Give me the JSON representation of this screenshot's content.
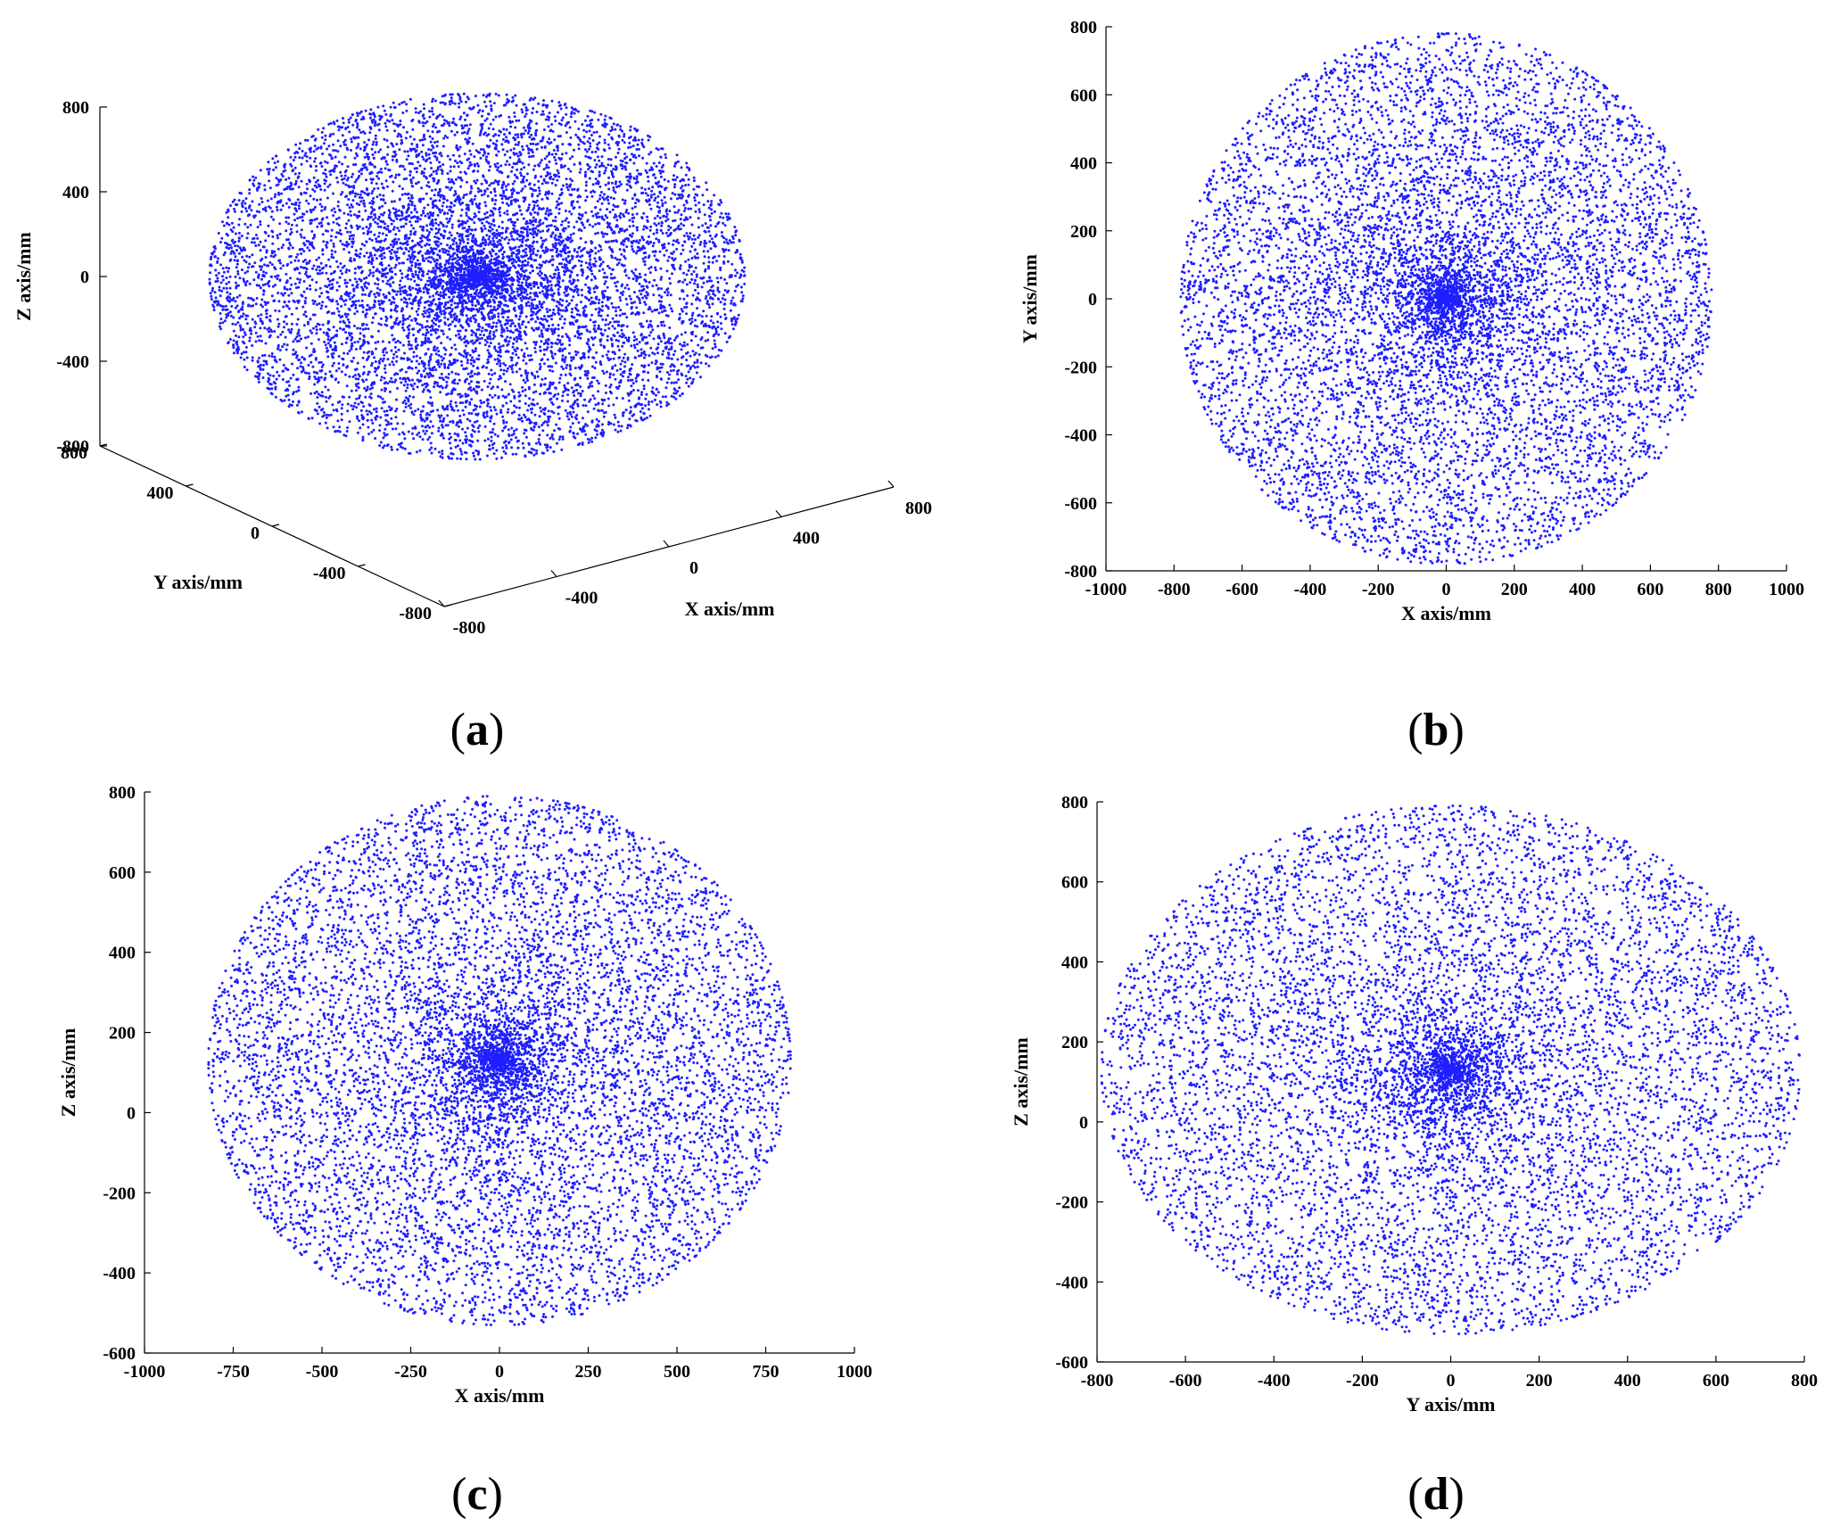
{
  "chart_data": [
    {
      "id": "a",
      "type": "scatter",
      "projection": "3d",
      "caption": "a",
      "xlabel": "X axis/mm",
      "ylabel": "Y axis/mm",
      "zlabel": "Z axis/mm",
      "xticks": [
        "-800",
        "-400",
        "0",
        "400",
        "800"
      ],
      "yticks": [
        "-800",
        "-400",
        "0",
        "400",
        "800"
      ],
      "zticks": [
        "-800",
        "-400",
        "0",
        "400",
        "800"
      ],
      "xlim": [
        -800,
        800
      ],
      "ylim": [
        -800,
        800
      ],
      "zlim": [
        -800,
        800
      ],
      "series": [
        {
          "color": "#1f1fff",
          "marker": "dot",
          "count": 9000,
          "distribution": "sphere_centered",
          "center": [
            0,
            0,
            0
          ],
          "radius": 800
        }
      ]
    },
    {
      "id": "b",
      "type": "scatter",
      "caption": "b",
      "xlabel": "X axis/mm",
      "ylabel": "Y axis/mm",
      "xticks": [
        "-1000",
        "-800",
        "-600",
        "-400",
        "-200",
        "0",
        "200",
        "400",
        "600",
        "800",
        "1000"
      ],
      "yticks": [
        "-800",
        "-600",
        "-400",
        "-200",
        "0",
        "200",
        "400",
        "600",
        "800"
      ],
      "xlim": [
        -1000,
        1000
      ],
      "ylim": [
        -800,
        800
      ],
      "series": [
        {
          "color": "#1f1fff",
          "marker": "dot",
          "count": 9000,
          "distribution": "disk_centered",
          "center": [
            0,
            0
          ],
          "radius": [
            780,
            780
          ]
        }
      ]
    },
    {
      "id": "c",
      "type": "scatter",
      "caption": "c",
      "xlabel": "X axis/mm",
      "ylabel": "Z axis/mm",
      "xticks": [
        "-1000",
        "-750",
        "-500",
        "-250",
        "0",
        "250",
        "500",
        "750",
        "1000"
      ],
      "yticks": [
        "-600",
        "-400",
        "-200",
        "0",
        "200",
        "400",
        "600",
        "800"
      ],
      "xlim": [
        -1000,
        1000
      ],
      "ylim": [
        -600,
        800
      ],
      "series": [
        {
          "color": "#1f1fff",
          "marker": "dot",
          "count": 9000,
          "distribution": "disk_centered",
          "center": [
            0,
            130
          ],
          "radius": [
            820,
            660
          ]
        }
      ]
    },
    {
      "id": "d",
      "type": "scatter",
      "caption": "d",
      "xlabel": "Y axis/mm",
      "ylabel": "Z axis/mm",
      "xticks": [
        "-800",
        "-600",
        "-400",
        "-200",
        "0",
        "200",
        "400",
        "600",
        "800"
      ],
      "yticks": [
        "-600",
        "-400",
        "-200",
        "0",
        "200",
        "400",
        "600",
        "800"
      ],
      "xlim": [
        -800,
        800
      ],
      "ylim": [
        -600,
        800
      ],
      "series": [
        {
          "color": "#1f1fff",
          "marker": "dot",
          "count": 9000,
          "distribution": "disk_centered",
          "center": [
            0,
            130
          ],
          "radius": [
            790,
            660
          ]
        }
      ]
    }
  ]
}
